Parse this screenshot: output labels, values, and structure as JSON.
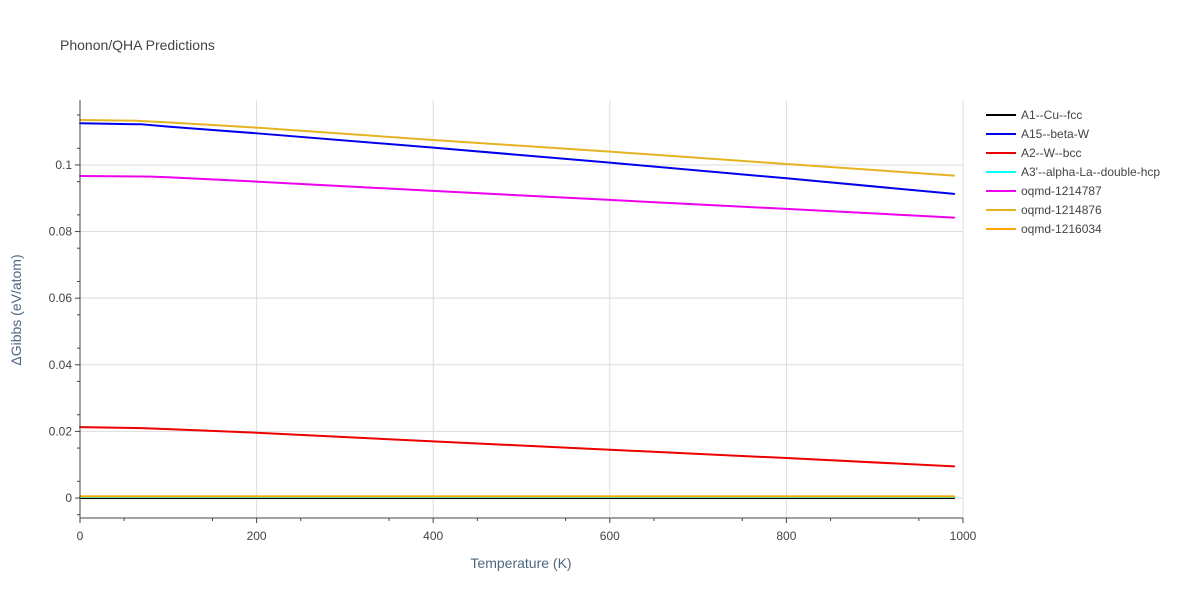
{
  "chart_data": {
    "type": "line",
    "title": "Phonon/QHA Predictions",
    "xlabel": "Temperature (K)",
    "ylabel": "ΔGibbs (eV/atom)",
    "xlim": [
      0,
      1000
    ],
    "ylim": [
      -0.006,
      0.1195
    ],
    "x_ticks": [
      0,
      200,
      400,
      600,
      800,
      1000
    ],
    "x_tick_labels": [
      "0",
      "200",
      "400",
      "600",
      "800",
      "1000"
    ],
    "y_ticks": [
      0,
      0.02,
      0.04,
      0.06,
      0.08,
      0.1
    ],
    "y_tick_labels": [
      "0",
      "0.02",
      "0.04",
      "0.06",
      "0.08",
      "0.1"
    ],
    "grid": true,
    "legend_position": "right",
    "series": [
      {
        "name": "A1--Cu--fcc",
        "color": "#000000",
        "x": [
          0,
          990
        ],
        "y": [
          0.0,
          0.0
        ]
      },
      {
        "name": "A15--beta-W",
        "color": "#0000ee",
        "x": [
          0,
          70,
          100,
          200,
          400,
          600,
          800,
          990
        ],
        "y": [
          0.1125,
          0.1122,
          0.1115,
          0.1095,
          0.1052,
          0.1007,
          0.096,
          0.0913
        ]
      },
      {
        "name": "A2--W--bcc",
        "color": "#ee0000",
        "x": [
          0,
          70,
          100,
          200,
          400,
          600,
          800,
          990
        ],
        "y": [
          0.0213,
          0.021,
          0.0207,
          0.0196,
          0.017,
          0.0145,
          0.012,
          0.0095
        ]
      },
      {
        "name": "A3'--alpha-La--double-hcp",
        "color": "#00ffff",
        "x": [
          0,
          990
        ],
        "y": [
          0.0003,
          0.0003
        ]
      },
      {
        "name": "oqmd-1214787",
        "color": "#ee00ee",
        "x": [
          0,
          80,
          100,
          200,
          400,
          600,
          800,
          990
        ],
        "y": [
          0.0967,
          0.0965,
          0.0963,
          0.095,
          0.0922,
          0.0895,
          0.0868,
          0.0842
        ]
      },
      {
        "name": "oqmd-1214876",
        "color": "#e6b422",
        "x": [
          0,
          60,
          100,
          200,
          400,
          600,
          800,
          990
        ],
        "y": [
          0.1135,
          0.1133,
          0.1128,
          0.1112,
          0.1075,
          0.104,
          0.1003,
          0.0968
        ]
      },
      {
        "name": "oqmd-1216034",
        "color": "#ffa500",
        "x": [
          0,
          990
        ],
        "y": [
          0.0005,
          0.0005
        ]
      }
    ]
  }
}
